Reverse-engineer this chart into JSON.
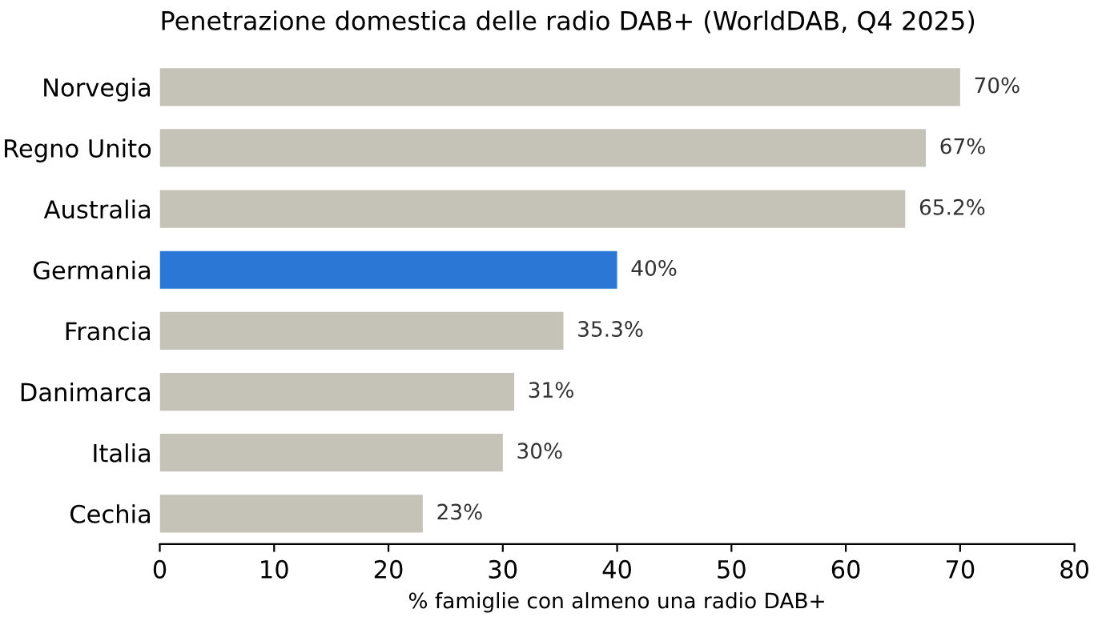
{
  "chart_data": {
    "type": "bar",
    "orientation": "horizontal",
    "title": "Penetrazione domestica delle radio DAB+ (WorldDAB, Q4 2025)",
    "xlabel": "% famiglie con almeno una radio DAB+",
    "categories": [
      "Norvegia",
      "Regno Unito",
      "Australia",
      "Germania",
      "Francia",
      "Danimarca",
      "Italia",
      "Cechia"
    ],
    "values": [
      70,
      67,
      65.2,
      40,
      35.3,
      31,
      30,
      23
    ],
    "colors": [
      "#c5c2b8",
      "#c5c2b8",
      "#c5c2b8",
      "#2a77d6",
      "#c5c2b8",
      "#c5c2b8",
      "#c5c2b8",
      "#c5c2b8"
    ],
    "value_labels": [
      "70%",
      "67%",
      "65.2%",
      "40%",
      "35.3%",
      "31%",
      "30%",
      "23%"
    ],
    "xlim": [
      0,
      80
    ],
    "xticks": [
      0,
      10,
      20,
      30,
      40,
      50,
      60,
      70,
      80
    ],
    "grid": false,
    "legend": false
  }
}
